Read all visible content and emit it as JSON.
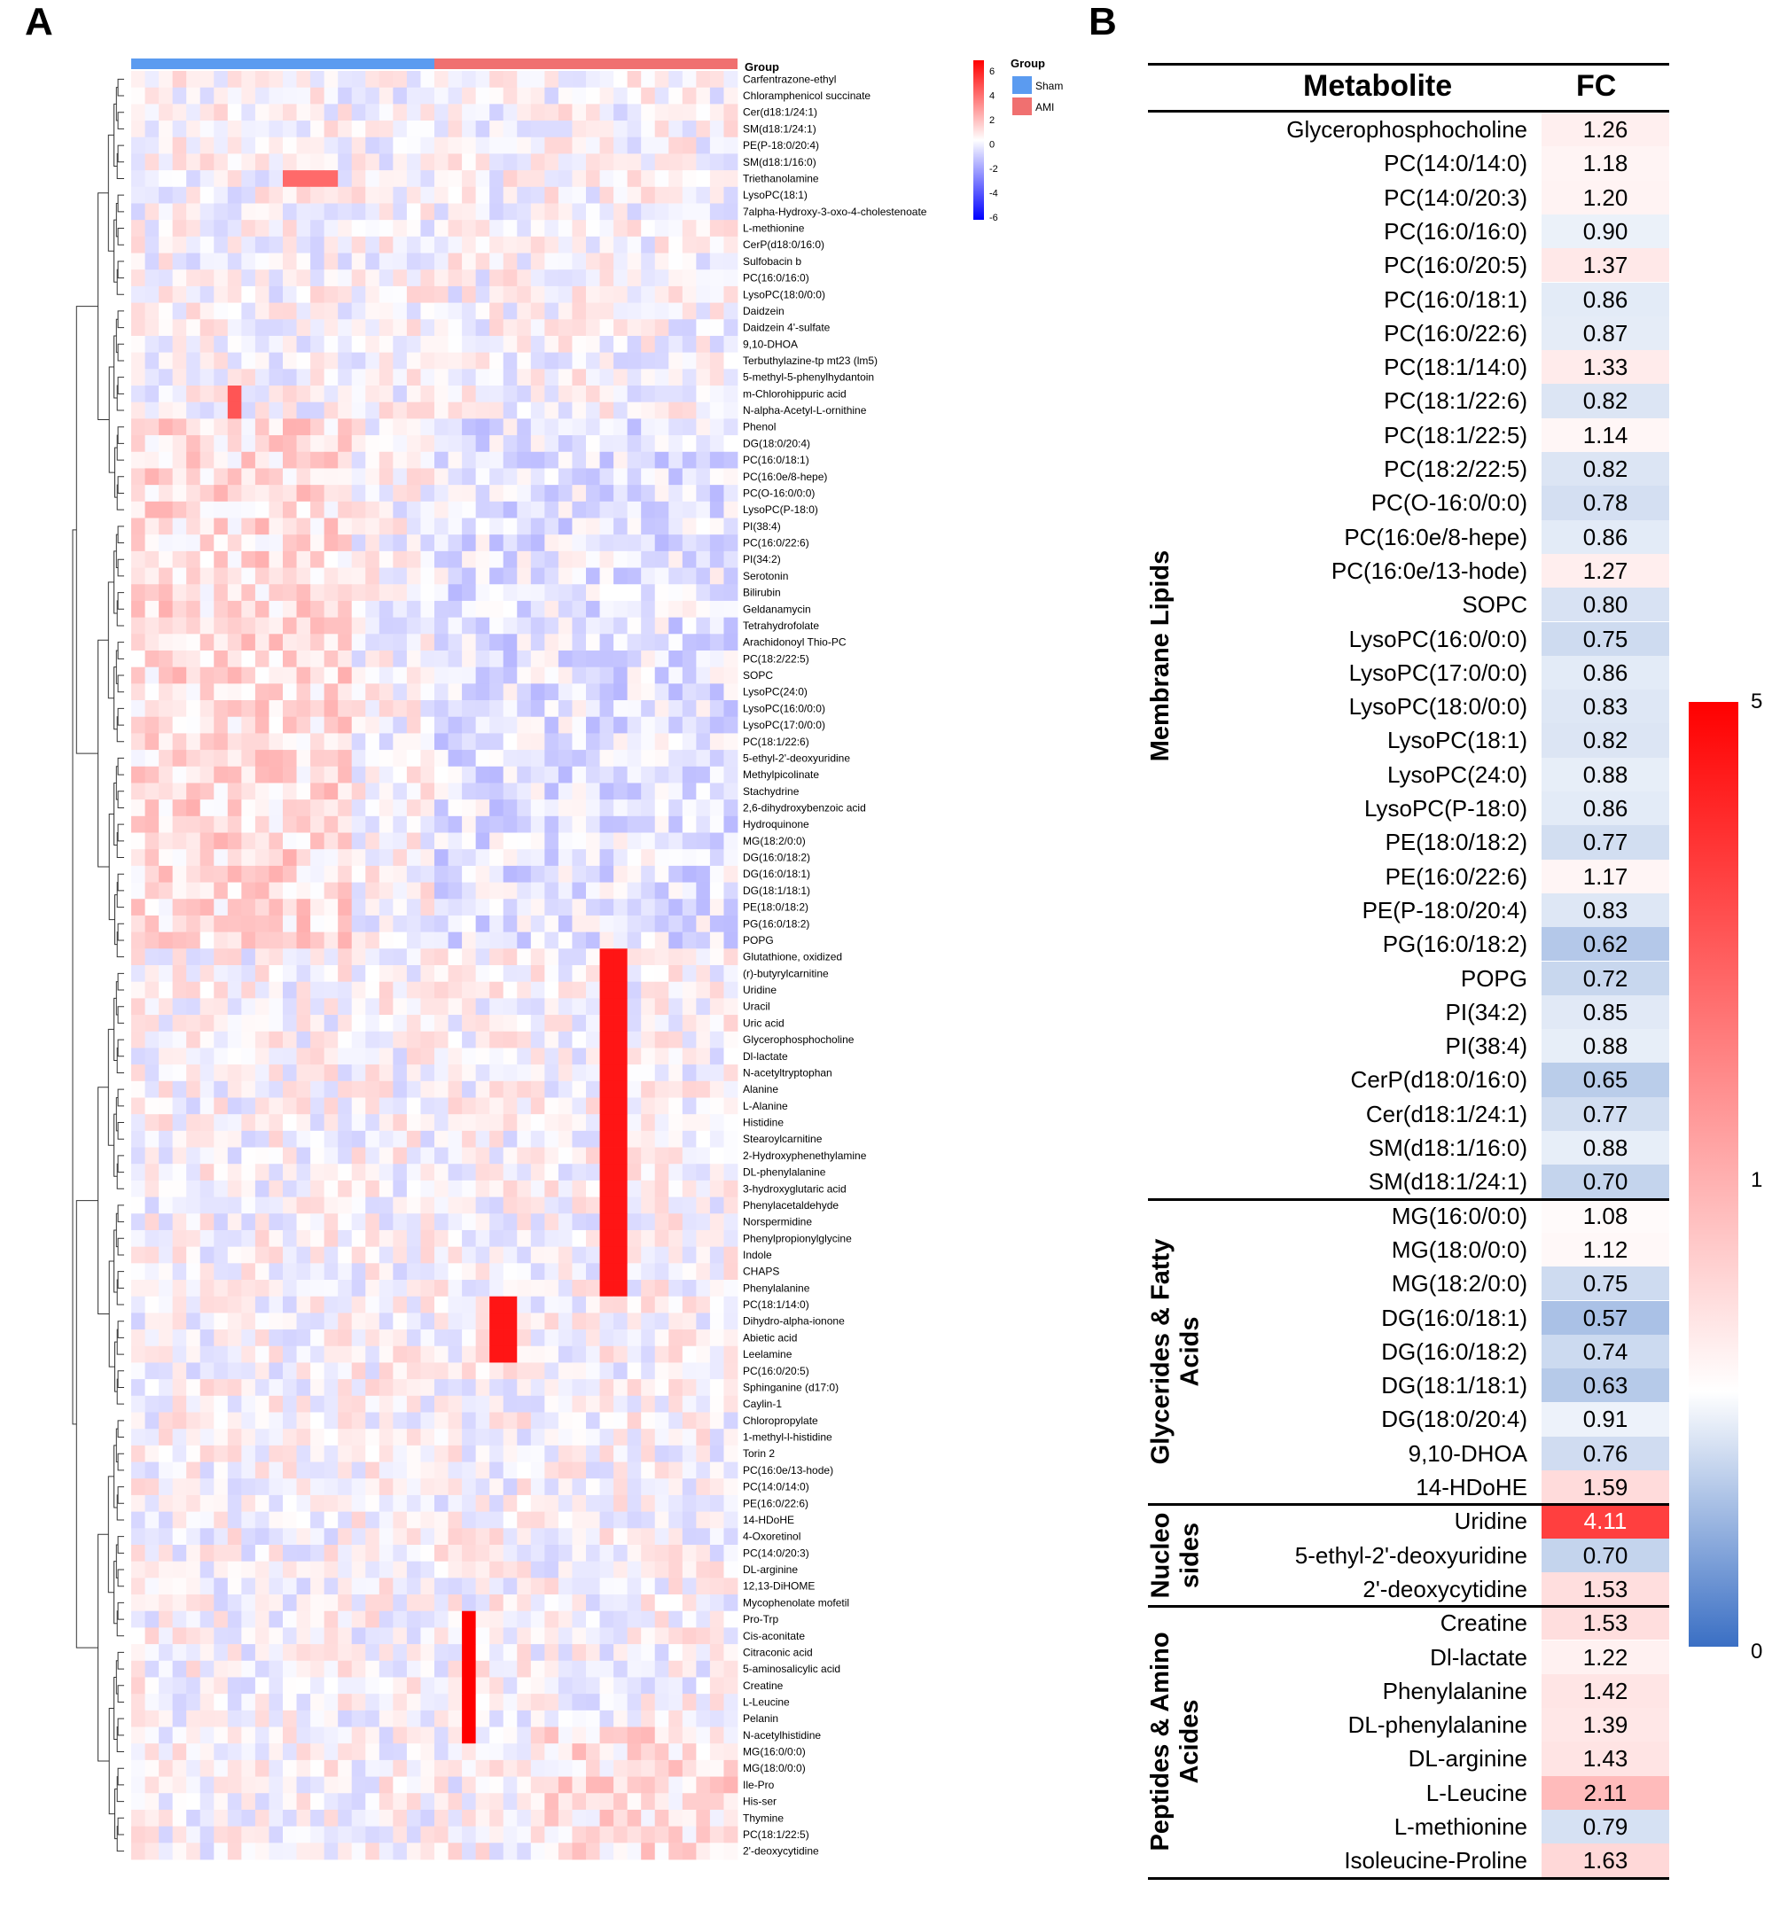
{
  "panels": {
    "a": "A",
    "b": "B"
  },
  "heatmap": {
    "group_title": "Group",
    "legend_title": "Group",
    "legend_groups": [
      {
        "name": "Sham",
        "color": "#5b9bf0"
      },
      {
        "name": "AMI",
        "color": "#f07070"
      }
    ],
    "scale_ticks": [
      "6",
      "4",
      "2",
      "0",
      "-2",
      "-4",
      "-6"
    ],
    "row_labels": [
      "Carfentrazone-ethyl",
      "Chloramphenicol succinate",
      "Cer(d18:1/24:1)",
      "SM(d18:1/24:1)",
      "PE(P-18:0/20:4)",
      "SM(d18:1/16:0)",
      "Triethanolamine",
      "LysoPC(18:1)",
      "7alpha-Hydroxy-3-oxo-4-cholestenoate",
      "L-methionine",
      "CerP(d18:0/16:0)",
      "Sulfobacin b",
      "PC(16:0/16:0)",
      "LysoPC(18:0/0:0)",
      "Daidzein",
      "Daidzein 4'-sulfate",
      "9,10-DHOA",
      "Terbuthylazine-tp mt23 (lm5)",
      "5-methyl-5-phenylhydantoin",
      "m-Chlorohippuric acid",
      "N-alpha-Acetyl-L-ornithine",
      "Phenol",
      "DG(18:0/20:4)",
      "PC(16:0/18:1)",
      "PC(16:0e/8-hepe)",
      "PC(O-16:0/0:0)",
      "LysoPC(P-18:0)",
      "PI(38:4)",
      "PC(16:0/22:6)",
      "PI(34:2)",
      "Serotonin",
      "Bilirubin",
      "Geldanamycin",
      "Tetrahydrofolate",
      "Arachidonoyl Thio-PC",
      "PC(18:2/22:5)",
      "SOPC",
      "LysoPC(24:0)",
      "LysoPC(16:0/0:0)",
      "LysoPC(17:0/0:0)",
      "PC(18:1/22:6)",
      "5-ethyl-2'-deoxyuridine",
      "Methylpicolinate",
      "Stachydrine",
      "2,6-dihydroxybenzoic acid",
      "Hydroquinone",
      "MG(18:2/0:0)",
      "DG(16:0/18:2)",
      "DG(16:0/18:1)",
      "DG(18:1/18:1)",
      "PE(18:0/18:2)",
      "PG(16:0/18:2)",
      "POPG",
      "Glutathione, oxidized",
      "(r)-butyrylcarnitine",
      "Uridine",
      "Uracil",
      "Uric acid",
      "Glycerophosphocholine",
      "Dl-lactate",
      "N-acetyltryptophan",
      "Alanine",
      "L-Alanine",
      "Histidine",
      "Stearoylcarnitine",
      "2-Hydroxyphenethylamine",
      "DL-phenylalanine",
      "3-hydroxyglutaric acid",
      "Phenylacetaldehyde",
      "Norspermidine",
      "Phenylpropionylglycine",
      "Indole",
      "CHAPS",
      "Phenylalanine",
      "PC(18:1/14:0)",
      "Dihydro-alpha-ionone",
      "Abietic acid",
      "Leelamine",
      "PC(16:0/20:5)",
      "Sphinganine (d17:0)",
      "Caylin-1",
      "Chloropropylate",
      "1-methyl-l-histidine",
      "Torin 2",
      "PC(16:0e/13-hode)",
      "PC(14:0/14:0)",
      "PE(16:0/22:6)",
      "14-HDoHE",
      "4-Oxoretinol",
      "PC(14:0/20:3)",
      "DL-arginine",
      "12,13-DiHOME",
      "Mycophenolate mofetil",
      "Pro-Trp",
      "Cis-aconitate",
      "Citraconic acid",
      "5-aminosalicylic acid",
      "Creatine",
      "L-Leucine",
      "Pelanin",
      "N-acetylhistidine",
      "MG(16:0/0:0)",
      "MG(18:0/0:0)",
      "Ile-Pro",
      "His-ser",
      "Thymine",
      "PC(18:1/22:5)",
      "2'-deoxycytidine"
    ]
  },
  "table": {
    "header_metabolite": "Metabolite",
    "header_fc": "FC",
    "categories": [
      {
        "label": "Membrane Lipids",
        "rows": [
          {
            "name": "Glycerophosphocholine",
            "fc": "1.26"
          },
          {
            "name": "PC(14:0/14:0)",
            "fc": "1.18"
          },
          {
            "name": "PC(14:0/20:3)",
            "fc": "1.20"
          },
          {
            "name": "PC(16:0/16:0)",
            "fc": "0.90"
          },
          {
            "name": "PC(16:0/20:5)",
            "fc": "1.37"
          },
          {
            "name": "PC(16:0/18:1)",
            "fc": "0.86"
          },
          {
            "name": "PC(16:0/22:6)",
            "fc": "0.87"
          },
          {
            "name": "PC(18:1/14:0)",
            "fc": "1.33"
          },
          {
            "name": "PC(18:1/22:6)",
            "fc": "0.82"
          },
          {
            "name": "PC(18:1/22:5)",
            "fc": "1.14"
          },
          {
            "name": "PC(18:2/22:5)",
            "fc": "0.82"
          },
          {
            "name": "PC(O-16:0/0:0)",
            "fc": "0.78"
          },
          {
            "name": "PC(16:0e/8-hepe)",
            "fc": "0.86"
          },
          {
            "name": "PC(16:0e/13-hode)",
            "fc": "1.27"
          },
          {
            "name": "SOPC",
            "fc": "0.80"
          },
          {
            "name": "LysoPC(16:0/0:0)",
            "fc": "0.75"
          },
          {
            "name": "LysoPC(17:0/0:0)",
            "fc": "0.86"
          },
          {
            "name": "LysoPC(18:0/0:0)",
            "fc": "0.83"
          },
          {
            "name": "LysoPC(18:1)",
            "fc": "0.82"
          },
          {
            "name": "LysoPC(24:0)",
            "fc": "0.88"
          },
          {
            "name": "LysoPC(P-18:0)",
            "fc": "0.86"
          },
          {
            "name": "PE(18:0/18:2)",
            "fc": "0.77"
          },
          {
            "name": "PE(16:0/22:6)",
            "fc": "1.17"
          },
          {
            "name": "PE(P-18:0/20:4)",
            "fc": "0.83"
          },
          {
            "name": "PG(16:0/18:2)",
            "fc": "0.62"
          },
          {
            "name": "POPG",
            "fc": "0.72"
          },
          {
            "name": "PI(34:2)",
            "fc": "0.85"
          },
          {
            "name": "PI(38:4)",
            "fc": "0.88"
          },
          {
            "name": "CerP(d18:0/16:0)",
            "fc": "0.65"
          },
          {
            "name": "Cer(d18:1/24:1)",
            "fc": "0.77"
          },
          {
            "name": "SM(d18:1/16:0)",
            "fc": "0.88"
          },
          {
            "name": "SM(d18:1/24:1)",
            "fc": "0.70"
          }
        ]
      },
      {
        "label": "Glycerides & Fatty Acids",
        "rows": [
          {
            "name": "MG(16:0/0:0)",
            "fc": "1.08"
          },
          {
            "name": "MG(18:0/0:0)",
            "fc": "1.12"
          },
          {
            "name": "MG(18:2/0:0)",
            "fc": "0.75"
          },
          {
            "name": "DG(16:0/18:1)",
            "fc": "0.57"
          },
          {
            "name": "DG(16:0/18:2)",
            "fc": "0.74"
          },
          {
            "name": "DG(18:1/18:1)",
            "fc": "0.63"
          },
          {
            "name": "DG(18:0/20:4)",
            "fc": "0.91"
          },
          {
            "name": "9,10-DHOA",
            "fc": "0.76"
          },
          {
            "name": "14-HDoHE",
            "fc": "1.59"
          }
        ]
      },
      {
        "label": "Nucleosides",
        "rows": [
          {
            "name": "Uridine",
            "fc": "4.11"
          },
          {
            "name": "5-ethyl-2'-deoxyuridine",
            "fc": "0.70"
          },
          {
            "name": "2'-deoxycytidine",
            "fc": "1.53"
          }
        ]
      },
      {
        "label": "Peptides & Amino Acides",
        "rows": [
          {
            "name": "Creatine",
            "fc": "1.53"
          },
          {
            "name": "Dl-lactate",
            "fc": "1.22"
          },
          {
            "name": "Phenylalanine",
            "fc": "1.42"
          },
          {
            "name": "DL-phenylalanine",
            "fc": "1.39"
          },
          {
            "name": "DL-arginine",
            "fc": "1.43"
          },
          {
            "name": "L-Leucine",
            "fc": "2.11"
          },
          {
            "name": "L-methionine",
            "fc": "0.79"
          },
          {
            "name": "Isoleucine-Proline",
            "fc": "1.63"
          }
        ]
      }
    ],
    "colorbar": {
      "max": "5",
      "mid": "1",
      "min": "0"
    }
  },
  "chart_data": [
    {
      "type": "heatmap",
      "title": "",
      "description_groups": [
        "Sham",
        "AMI"
      ],
      "color_range": [
        -6,
        6
      ]
    },
    {
      "type": "table",
      "title": "",
      "columns": [
        "Metabolite",
        "FC"
      ],
      "color_range": [
        0,
        5
      ],
      "color_mid": 1
    }
  ]
}
